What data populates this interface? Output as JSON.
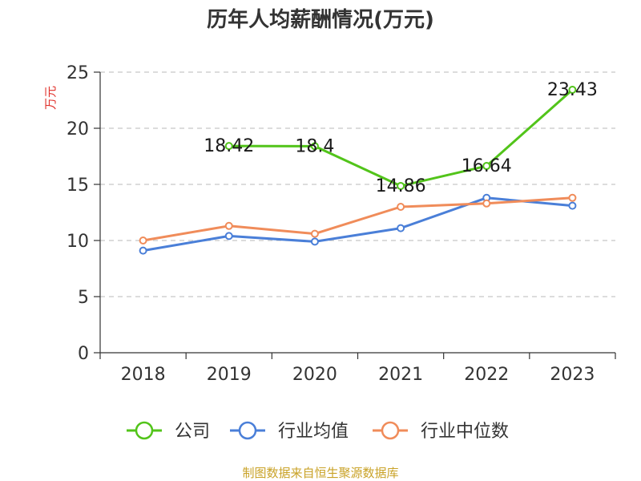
{
  "chart_data": {
    "type": "line",
    "title": "历年人均薪酬情况(万元)",
    "ylabel": "万元",
    "xlabel": "",
    "categories": [
      "2018",
      "2019",
      "2020",
      "2021",
      "2022",
      "2023"
    ],
    "ylim": [
      0,
      25
    ],
    "yticks": [
      0,
      5,
      10,
      15,
      20,
      25
    ],
    "grid": true,
    "legend_position": "bottom",
    "series": [
      {
        "name": "公司",
        "color": "#52c41a",
        "values": [
          null,
          18.42,
          18.4,
          14.86,
          16.64,
          23.43
        ],
        "labels": [
          "",
          "18.42",
          "18.4",
          "14.86",
          "16.64",
          "23.43"
        ]
      },
      {
        "name": "行业均值",
        "color": "#4a7fd8",
        "values": [
          9.1,
          10.4,
          9.9,
          11.1,
          13.8,
          13.1
        ]
      },
      {
        "name": "行业中位数",
        "color": "#f08c5a",
        "values": [
          10.0,
          11.3,
          10.6,
          13.0,
          13.3,
          13.8
        ]
      }
    ]
  },
  "source": "制图数据来自恒生聚源数据库"
}
